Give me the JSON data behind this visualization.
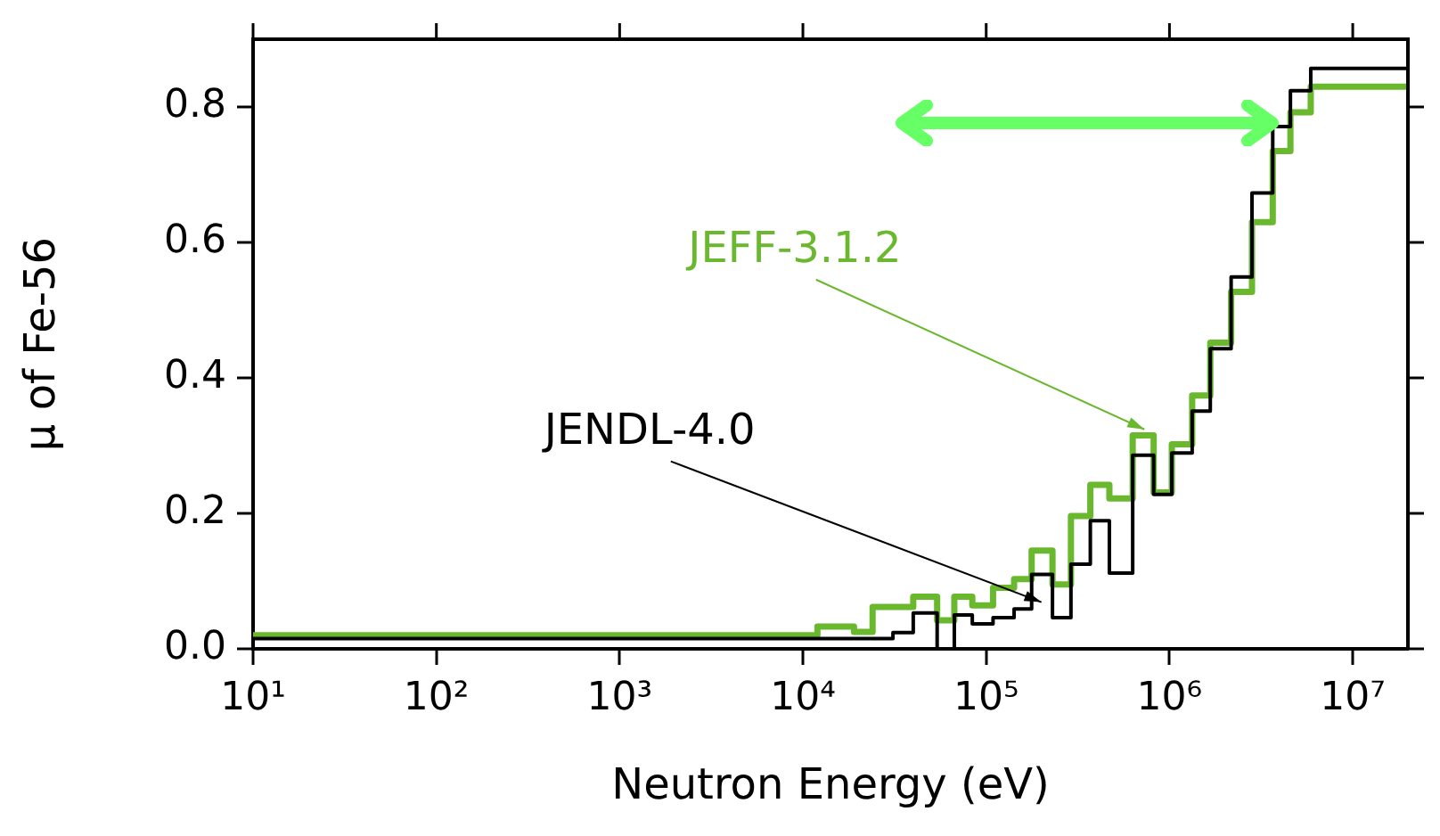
{
  "chart_data": {
    "type": "step",
    "xlabel": "Neutron Energy (eV)",
    "ylabel": "μ of Fe-56",
    "log": "x",
    "grid": false,
    "legend": false,
    "xlim": [
      10,
      20000000
    ],
    "ylim": [
      0,
      0.9
    ],
    "xticks": [
      {
        "value": 10,
        "label": "10¹"
      },
      {
        "value": 100,
        "label": "10²"
      },
      {
        "value": 1000,
        "label": "10³"
      },
      {
        "value": 10000,
        "label": "10⁴"
      },
      {
        "value": 100000,
        "label": "10⁵"
      },
      {
        "value": 1000000,
        "label": "10⁶"
      },
      {
        "value": 10000000,
        "label": "10⁷"
      }
    ],
    "yticks": [
      {
        "value": 0,
        "label": "0.0"
      },
      {
        "value": 0.2,
        "label": "0.2"
      },
      {
        "value": 0.4,
        "label": "0.4"
      },
      {
        "value": 0.6,
        "label": "0.6"
      },
      {
        "value": 0.8,
        "label": "0.8"
      }
    ],
    "x": [
      10,
      12000,
      19000,
      24000,
      31000,
      40000,
      54000,
      67000,
      84000,
      109000,
      142000,
      177000,
      230000,
      290000,
      370000,
      470000,
      630000,
      820000,
      1030000,
      1330000,
      1670000,
      2170000,
      2820000,
      3660000,
      4570000,
      5900000,
      7700000,
      20000000
    ],
    "series": [
      {
        "color": "#6ab82e",
        "values": [
          0.015,
          0.02,
          0.033,
          0.025,
          0.062,
          0.062,
          0.077,
          0.042,
          0.077,
          0.064,
          0.09,
          0.103,
          0.145,
          0.095,
          0.196,
          0.242,
          0.222,
          0.315,
          0.231,
          0.302,
          0.374,
          0.452,
          0.527,
          0.63,
          0.735,
          0.792,
          0.83,
          0.83
        ]
      },
      {
        "color": "#000000",
        "values": [
          0.012,
          0.015,
          0.015,
          0.015,
          0.015,
          0.024,
          0.053,
          0,
          0.05,
          0.037,
          0.046,
          0.059,
          0.11,
          0.046,
          0.125,
          0.189,
          0.112,
          0.286,
          0.228,
          0.289,
          0.351,
          0.443,
          0.549,
          0.673,
          0.771,
          0.824,
          0.857,
          0.857
        ]
      }
    ],
    "annotations": [
      {
        "text": "JEFF-3.1.2",
        "x": 730000,
        "y": 0.324
      },
      {
        "text": "JENDL-4.0",
        "x": 200000,
        "y": 0.069
      }
    ]
  }
}
